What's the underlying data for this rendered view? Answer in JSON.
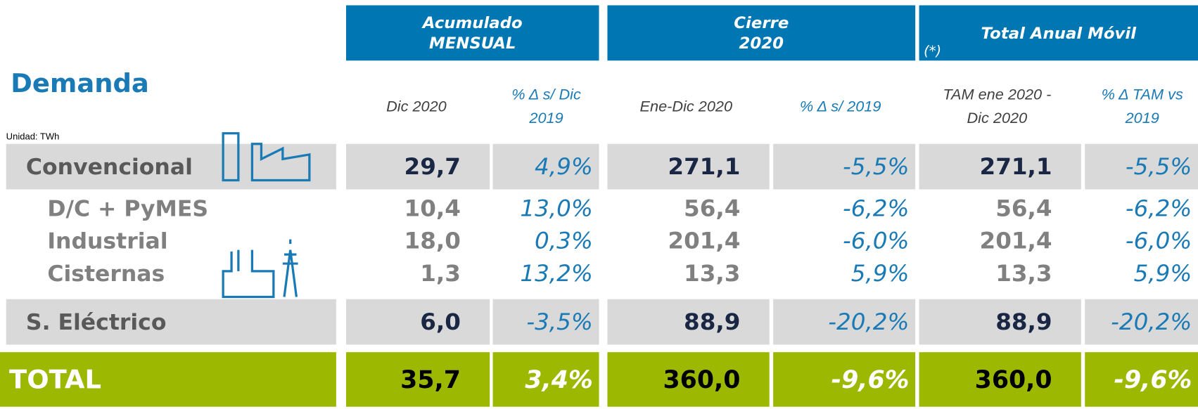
{
  "title": "Demanda",
  "unit": "Unidad: TWh",
  "column_groups": [
    {
      "lines": [
        "Acumulado",
        "MENSUAL"
      ]
    },
    {
      "lines": [
        "Cierre",
        "2020"
      ]
    },
    {
      "lines": [
        "Total Anual Móvil"
      ],
      "note": "(*)"
    }
  ],
  "columns": [
    {
      "lines": [
        "Dic 2020"
      ]
    },
    {
      "lines": [
        "% Δ s/ Dic",
        "2019"
      ]
    },
    {
      "lines": [
        "Ene-Dic 2020"
      ]
    },
    {
      "lines": [
        "% Δ s/ 2019"
      ]
    },
    {
      "lines": [
        "TAM ene 2020 -",
        "Dic 2020"
      ]
    },
    {
      "lines": [
        "%  Δ TAM vs",
        "2019"
      ]
    }
  ],
  "rows": [
    {
      "label": "Convencional",
      "cells": [
        "29,7",
        "4,9%",
        "271,1",
        "-5,5%",
        "271,1",
        "-5,5%"
      ]
    },
    {
      "label": "D/C + PyMES",
      "cells": [
        "10,4",
        "13,0%",
        "56,4",
        "-6,2%",
        "56,4",
        "-6,2%"
      ]
    },
    {
      "label": "Industrial",
      "cells": [
        "18,0",
        "0,3%",
        "201,4",
        "-6,0%",
        "201,4",
        "-6,0%"
      ]
    },
    {
      "label": "Cisternas",
      "cells": [
        "1,3",
        "13,2%",
        "13,3",
        "5,9%",
        "13,3",
        "5,9%"
      ]
    },
    {
      "label": "S. Eléctrico",
      "cells": [
        "6,0",
        "-3,5%",
        "88,9",
        "-20,2%",
        "88,9",
        "-20,2%"
      ]
    },
    {
      "label": "TOTAL",
      "cells": [
        "35,7",
        "3,4%",
        "360,0",
        "-9,6%",
        "360,0",
        "-9,6%"
      ]
    }
  ]
}
